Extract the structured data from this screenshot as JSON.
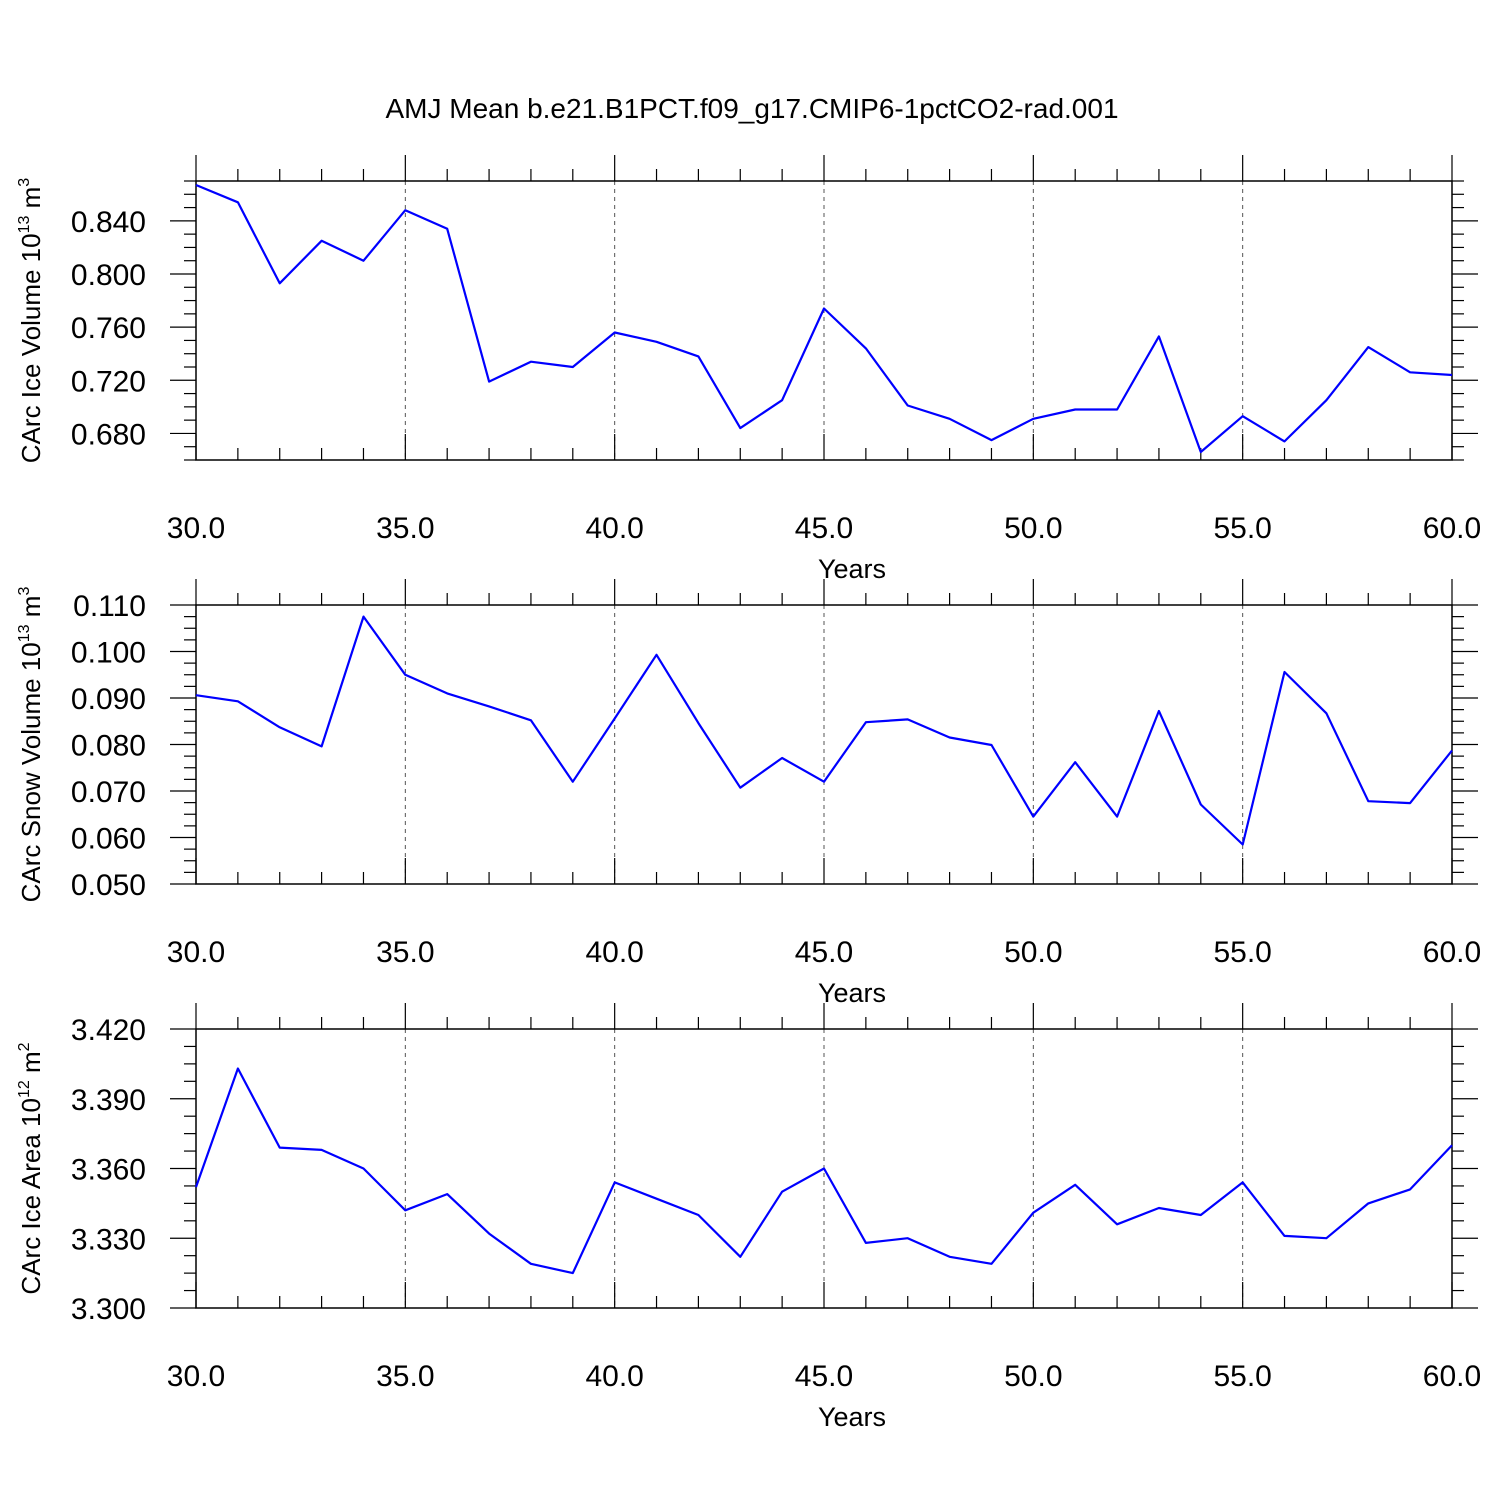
{
  "title": "AMJ Mean b.e21.B1PCT.f09_g17.CMIP6-1pctCO2-rad.001",
  "line_color": "#0000ff",
  "chart_data": [
    {
      "type": "line",
      "ylabel": {
        "text": "CArc Ice Volume 10",
        "exp": "13",
        "unit": " m",
        "unit_exp": "3"
      },
      "xlabel": "Years",
      "xlim": [
        30,
        60
      ],
      "ylim": [
        0.66,
        0.87
      ],
      "xticks": [
        30,
        35,
        40,
        45,
        50,
        55,
        60
      ],
      "xtick_labels": [
        "30.0",
        "35.0",
        "40.0",
        "45.0",
        "50.0",
        "55.0",
        "60.0"
      ],
      "yticks": [
        0.68,
        0.72,
        0.76,
        0.8,
        0.84
      ],
      "ytick_labels": [
        "0.680",
        "0.720",
        "0.760",
        "0.800",
        "0.840"
      ],
      "grid": "x-dashed",
      "x": [
        30,
        31,
        32,
        33,
        34,
        35,
        36,
        37,
        38,
        39,
        40,
        41,
        42,
        43,
        44,
        45,
        46,
        47,
        48,
        49,
        50,
        51,
        52,
        53,
        54,
        55,
        56,
        57,
        58,
        59,
        60
      ],
      "series": [
        {
          "values": [
            0.867,
            0.854,
            0.793,
            0.825,
            0.81,
            0.848,
            0.834,
            0.719,
            0.734,
            0.73,
            0.756,
            0.749,
            0.738,
            0.684,
            0.705,
            0.774,
            0.744,
            0.701,
            0.691,
            0.675,
            0.691,
            0.698,
            0.698,
            0.753,
            0.666,
            0.693,
            0.674,
            0.705,
            0.745,
            0.726,
            0.724
          ]
        }
      ]
    },
    {
      "type": "line",
      "ylabel": {
        "text": "CArc Snow Volume 10",
        "exp": "13",
        "unit": " m",
        "unit_exp": "3"
      },
      "xlabel": "Years",
      "xlim": [
        30,
        60
      ],
      "ylim": [
        0.05,
        0.11
      ],
      "xticks": [
        30,
        35,
        40,
        45,
        50,
        55,
        60
      ],
      "xtick_labels": [
        "30.0",
        "35.0",
        "40.0",
        "45.0",
        "50.0",
        "55.0",
        "60.0"
      ],
      "yticks": [
        0.05,
        0.06,
        0.07,
        0.08,
        0.09,
        0.1,
        0.11
      ],
      "ytick_labels": [
        "0.050",
        "0.060",
        "0.070",
        "0.080",
        "0.090",
        "0.100",
        "0.110"
      ],
      "grid": "x-dashed",
      "x": [
        30,
        31,
        32,
        33,
        34,
        35,
        36,
        37,
        38,
        39,
        40,
        41,
        42,
        43,
        44,
        45,
        46,
        47,
        48,
        49,
        50,
        51,
        52,
        53,
        54,
        55,
        56,
        57,
        58,
        59,
        60
      ],
      "series": [
        {
          "values": [
            0.0906,
            0.0893,
            0.0837,
            0.0796,
            0.1075,
            0.095,
            0.091,
            0.0882,
            0.0852,
            0.072,
            0.0856,
            0.0993,
            0.0846,
            0.0707,
            0.0771,
            0.072,
            0.0848,
            0.0854,
            0.0815,
            0.0799,
            0.0645,
            0.0762,
            0.0645,
            0.0872,
            0.0671,
            0.0585,
            0.0956,
            0.0867,
            0.0678,
            0.0674,
            0.0787
          ]
        }
      ]
    },
    {
      "type": "line",
      "ylabel": {
        "text": "CArc Ice Area 10",
        "exp": "12",
        "unit": " m",
        "unit_exp": "2"
      },
      "xlabel": "Years",
      "xlim": [
        30,
        60
      ],
      "ylim": [
        3.3,
        3.42
      ],
      "xticks": [
        30,
        35,
        40,
        45,
        50,
        55,
        60
      ],
      "xtick_labels": [
        "30.0",
        "35.0",
        "40.0",
        "45.0",
        "50.0",
        "55.0",
        "60.0"
      ],
      "yticks": [
        3.3,
        3.33,
        3.36,
        3.39,
        3.42
      ],
      "ytick_labels": [
        "3.300",
        "3.330",
        "3.360",
        "3.390",
        "3.420"
      ],
      "grid": "x-dashed",
      "x": [
        30,
        31,
        32,
        33,
        34,
        35,
        36,
        37,
        38,
        39,
        40,
        41,
        42,
        43,
        44,
        45,
        46,
        47,
        48,
        49,
        50,
        51,
        52,
        53,
        54,
        55,
        56,
        57,
        58,
        59,
        60
      ],
      "series": [
        {
          "values": [
            3.352,
            3.403,
            3.369,
            3.368,
            3.36,
            3.342,
            3.349,
            3.332,
            3.319,
            3.315,
            3.354,
            3.347,
            3.34,
            3.322,
            3.35,
            3.36,
            3.328,
            3.33,
            3.322,
            3.319,
            3.341,
            3.353,
            3.336,
            3.343,
            3.34,
            3.354,
            3.331,
            3.33,
            3.345,
            3.351,
            3.37
          ]
        }
      ]
    }
  ]
}
